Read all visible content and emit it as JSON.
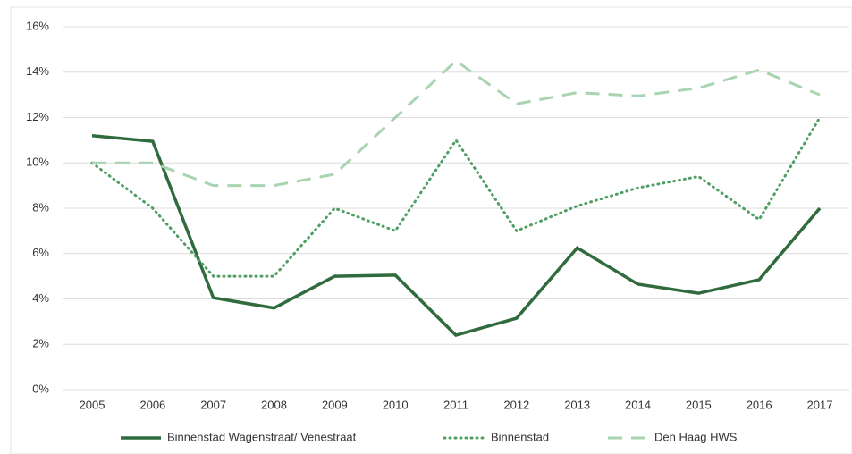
{
  "chart_data": {
    "type": "line",
    "categories": [
      "2005",
      "2006",
      "2007",
      "2008",
      "2009",
      "2010",
      "2011",
      "2012",
      "2013",
      "2014",
      "2015",
      "2016",
      "2017"
    ],
    "series": [
      {
        "name": "Binnenstad Wagenstraat/ Venestraat",
        "color": "#2f6b3d",
        "dash": "solid",
        "values": [
          11.2,
          10.95,
          4.05,
          3.6,
          5.0,
          5.05,
          2.4,
          3.15,
          6.25,
          4.65,
          4.25,
          4.85,
          8.0
        ]
      },
      {
        "name": "Binnenstad",
        "color": "#4f9e63",
        "dash": "dotted",
        "values": [
          10,
          8,
          5,
          5,
          8,
          7,
          11,
          7,
          8.1,
          8.9,
          9.4,
          7.5,
          12
        ]
      },
      {
        "name": "Den Haag HWS",
        "color": "#a9d4b1",
        "dash": "dashed",
        "values": [
          10,
          10,
          9,
          9,
          9.5,
          12,
          14.5,
          12.6,
          13.1,
          12.95,
          13.3,
          14.1,
          13
        ]
      }
    ],
    "ylim": [
      0,
      16
    ],
    "yticks": [
      {
        "value": 0,
        "label": "0%"
      },
      {
        "value": 2,
        "label": "2%"
      },
      {
        "value": 4,
        "label": "4%"
      },
      {
        "value": 6,
        "label": "6%"
      },
      {
        "value": 8,
        "label": "8%"
      },
      {
        "value": 10,
        "label": "10%"
      },
      {
        "value": 12,
        "label": "12%"
      },
      {
        "value": 14,
        "label": "14%"
      },
      {
        "value": 16,
        "label": "16%"
      }
    ],
    "grid": true,
    "legend": "bottom"
  }
}
